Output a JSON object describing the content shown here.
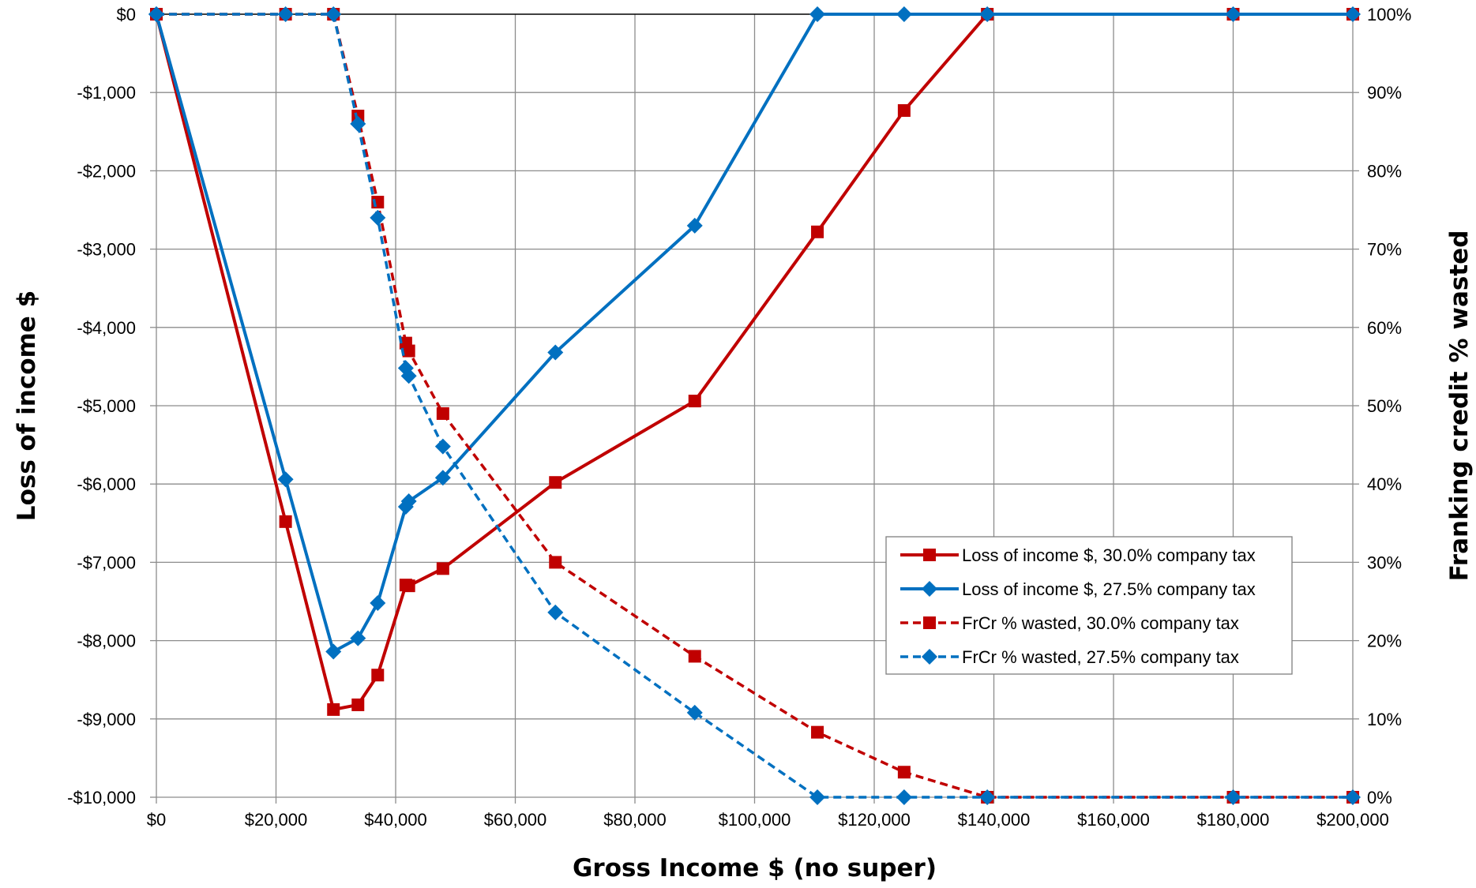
{
  "chart_data": {
    "type": "line",
    "title": "",
    "xlabel": "Gross Income $ (no super)",
    "ylabel": "Loss of income $",
    "y2label": "Franking credit % wasted",
    "xlim": [
      0,
      200000
    ],
    "ylim": [
      -10000,
      0
    ],
    "y2lim": [
      0,
      100
    ],
    "x_ticks": [
      "$0",
      "$20,000",
      "$40,000",
      "$60,000",
      "$80,000",
      "$100,000",
      "$120,000",
      "$140,000",
      "$160,000",
      "$180,000",
      "$200,000"
    ],
    "y_ticks": [
      "$0",
      "-$1,000",
      "-$2,000",
      "-$3,000",
      "-$4,000",
      "-$5,000",
      "-$6,000",
      "-$7,000",
      "-$8,000",
      "-$9,000",
      "-$10,000"
    ],
    "y2_ticks": [
      "100%",
      "90%",
      "80%",
      "70%",
      "60%",
      "50%",
      "40%",
      "30%",
      "20%",
      "10%",
      "0%"
    ],
    "grid": true,
    "legend_position": "right-center",
    "series": [
      {
        "name": "Loss of income $, 30.0% company tax",
        "axis": "left",
        "style": "solid",
        "marker": "square",
        "color": "#c00000",
        "points": [
          [
            0,
            0
          ],
          [
            21600,
            -6480
          ],
          [
            29600,
            -8880
          ],
          [
            33700,
            -8820
          ],
          [
            37000,
            -8440
          ],
          [
            41700,
            -7290
          ],
          [
            42200,
            -7300
          ],
          [
            47900,
            -7080
          ],
          [
            66700,
            -5980
          ],
          [
            90000,
            -4940
          ],
          [
            110500,
            -2780
          ],
          [
            125000,
            -1230
          ],
          [
            138900,
            0
          ],
          [
            180000,
            0
          ],
          [
            200000,
            0
          ]
        ]
      },
      {
        "name": "Loss of income $, 27.5% company tax",
        "axis": "left",
        "style": "solid",
        "marker": "diamond",
        "color": "#0070c0",
        "points": [
          [
            0,
            0
          ],
          [
            21600,
            -5940
          ],
          [
            29600,
            -8140
          ],
          [
            33700,
            -7970
          ],
          [
            37000,
            -7520
          ],
          [
            41700,
            -6290
          ],
          [
            42200,
            -6220
          ],
          [
            47900,
            -5920
          ],
          [
            66700,
            -4320
          ],
          [
            90000,
            -2700
          ],
          [
            110500,
            0
          ],
          [
            125000,
            0
          ],
          [
            138900,
            0
          ],
          [
            180000,
            0
          ],
          [
            200000,
            0
          ]
        ]
      },
      {
        "name": "FrCr % wasted, 30.0% company tax",
        "axis": "right",
        "style": "dashed",
        "marker": "square",
        "color": "#c00000",
        "points": [
          [
            0,
            100
          ],
          [
            21600,
            100
          ],
          [
            29600,
            100
          ],
          [
            33700,
            87
          ],
          [
            37000,
            76
          ],
          [
            41700,
            58
          ],
          [
            42200,
            57
          ],
          [
            47900,
            49
          ],
          [
            66700,
            30
          ],
          [
            90000,
            18
          ],
          [
            110500,
            8.3
          ],
          [
            125000,
            3.2
          ],
          [
            138900,
            0
          ],
          [
            180000,
            0
          ],
          [
            200000,
            0
          ]
        ]
      },
      {
        "name": "FrCr % wasted, 27.5% company tax",
        "axis": "right",
        "style": "dashed",
        "marker": "diamond",
        "color": "#0070c0",
        "points": [
          [
            0,
            100
          ],
          [
            21600,
            100
          ],
          [
            29600,
            100
          ],
          [
            33700,
            86
          ],
          [
            37000,
            74
          ],
          [
            41700,
            54.8
          ],
          [
            42200,
            53.8
          ],
          [
            47900,
            44.8
          ],
          [
            66700,
            23.6
          ],
          [
            90000,
            10.8
          ],
          [
            110500,
            0
          ],
          [
            125000,
            0
          ],
          [
            138900,
            0
          ],
          [
            180000,
            0
          ],
          [
            200000,
            0
          ]
        ]
      }
    ]
  }
}
